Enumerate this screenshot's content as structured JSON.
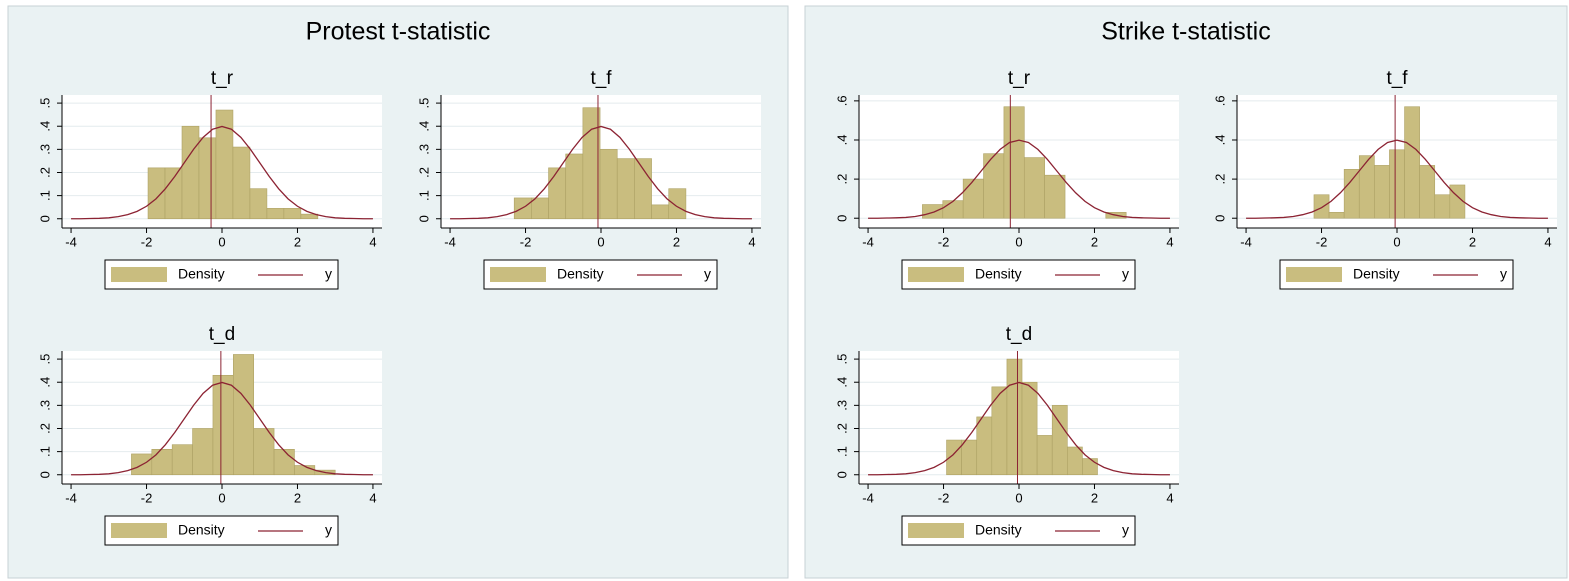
{
  "chart_data": [
    {
      "type": "panel",
      "title": "Protest t-statistic",
      "charts": [
        {
          "type": "histogram",
          "title": "t_r",
          "bins": [
            -1.96,
            -1.51,
            -1.06,
            -0.61,
            -0.16,
            0.29,
            0.74,
            1.19,
            1.64,
            2.09,
            2.54
          ],
          "series": [
            {
              "name": "Density",
              "color": "#c9bd7f",
              "values": [
                0.22,
                0.22,
                0.4,
                0.35,
                0.47,
                0.31,
                0.13,
                0.045,
                0.045,
                0.02
              ]
            }
          ],
          "curve": {
            "name": "y",
            "color": "#8c2333",
            "x": [
              -4,
              -3.75,
              -3.5,
              -3.25,
              -3,
              -2.75,
              -2.5,
              -2.25,
              -2,
              -1.75,
              -1.5,
              -1.25,
              -1,
              -0.75,
              -0.5,
              -0.25,
              0,
              0.25,
              0.5,
              0.75,
              1,
              1.25,
              1.5,
              1.75,
              2,
              2.25,
              2.5,
              2.75,
              3,
              3.25,
              3.5,
              3.75,
              4
            ],
            "values": [
              0,
              0,
              0.001,
              0.002,
              0.004,
              0.009,
              0.018,
              0.032,
              0.054,
              0.086,
              0.13,
              0.183,
              0.242,
              0.301,
              0.352,
              0.387,
              0.399,
              0.387,
              0.352,
              0.301,
              0.242,
              0.183,
              0.13,
              0.086,
              0.054,
              0.032,
              0.018,
              0.009,
              0.004,
              0.002,
              0.001,
              0,
              0
            ]
          },
          "vline": -0.29,
          "xlim": [
            -4.24,
            4.24
          ],
          "xticks": [
            -4,
            -2,
            0,
            2,
            4
          ],
          "ylim": [
            -0.04,
            0.535
          ],
          "yticks": [
            0,
            {
              "value": 0.1,
              "label": ".1"
            },
            {
              "value": 0.2,
              "label": ".2"
            },
            {
              "value": 0.3,
              "label": ".3"
            },
            {
              "value": 0.4,
              "label": ".4"
            },
            {
              "value": 0.5,
              "label": ".5"
            }
          ],
          "grid": true
        },
        {
          "type": "histogram",
          "title": "t_f",
          "bins": [
            -2.3,
            -1.845,
            -1.39,
            -0.935,
            -0.48,
            -0.025,
            0.43,
            0.885,
            1.34,
            1.795,
            2.25
          ],
          "series": [
            {
              "name": "Density",
              "color": "#c9bd7f",
              "values": [
                0.09,
                0.09,
                0.22,
                0.28,
                0.48,
                0.3,
                0.26,
                0.26,
                0.06,
                0.13
              ]
            }
          ],
          "curve": {
            "name": "y",
            "color": "#8c2333",
            "x": [
              -4,
              -3.75,
              -3.5,
              -3.25,
              -3,
              -2.75,
              -2.5,
              -2.25,
              -2,
              -1.75,
              -1.5,
              -1.25,
              -1,
              -0.75,
              -0.5,
              -0.25,
              0,
              0.25,
              0.5,
              0.75,
              1,
              1.25,
              1.5,
              1.75,
              2,
              2.25,
              2.5,
              2.75,
              3,
              3.25,
              3.5,
              3.75,
              4
            ],
            "values": [
              0,
              0,
              0.001,
              0.002,
              0.004,
              0.009,
              0.018,
              0.032,
              0.054,
              0.086,
              0.13,
              0.183,
              0.242,
              0.301,
              0.352,
              0.387,
              0.399,
              0.387,
              0.352,
              0.301,
              0.242,
              0.183,
              0.13,
              0.086,
              0.054,
              0.032,
              0.018,
              0.009,
              0.004,
              0.002,
              0.001,
              0,
              0
            ]
          },
          "vline": -0.08,
          "xlim": [
            -4.24,
            4.24
          ],
          "xticks": [
            -4,
            -2,
            0,
            2,
            4
          ],
          "ylim": [
            -0.04,
            0.535
          ],
          "yticks": [
            0,
            {
              "value": 0.1,
              "label": ".1"
            },
            {
              "value": 0.2,
              "label": ".2"
            },
            {
              "value": 0.3,
              "label": ".3"
            },
            {
              "value": 0.4,
              "label": ".4"
            },
            {
              "value": 0.5,
              "label": ".5"
            }
          ],
          "grid": true
        },
        {
          "type": "histogram",
          "title": "t_d",
          "bins": [
            -2.4,
            -1.86,
            -1.32,
            -0.78,
            -0.24,
            0.3,
            0.84,
            1.38,
            1.92,
            2.46,
            3
          ],
          "series": [
            {
              "name": "Density",
              "color": "#c9bd7f",
              "values": [
                0.09,
                0.11,
                0.13,
                0.2,
                0.43,
                0.52,
                0.2,
                0.11,
                0.04,
                0.02
              ]
            }
          ],
          "curve": {
            "name": "y",
            "color": "#8c2333",
            "x": [
              -4,
              -3.75,
              -3.5,
              -3.25,
              -3,
              -2.75,
              -2.5,
              -2.25,
              -2,
              -1.75,
              -1.5,
              -1.25,
              -1,
              -0.75,
              -0.5,
              -0.25,
              0,
              0.25,
              0.5,
              0.75,
              1,
              1.25,
              1.5,
              1.75,
              2,
              2.25,
              2.5,
              2.75,
              3,
              3.25,
              3.5,
              3.75,
              4
            ],
            "values": [
              0,
              0,
              0.001,
              0.002,
              0.004,
              0.009,
              0.018,
              0.032,
              0.054,
              0.086,
              0.13,
              0.183,
              0.242,
              0.301,
              0.352,
              0.387,
              0.399,
              0.387,
              0.352,
              0.301,
              0.242,
              0.183,
              0.13,
              0.086,
              0.054,
              0.032,
              0.018,
              0.009,
              0.004,
              0.002,
              0.001,
              0,
              0
            ]
          },
          "vline": -0.03,
          "xlim": [
            -4.24,
            4.24
          ],
          "xticks": [
            -4,
            -2,
            0,
            2,
            4
          ],
          "ylim": [
            -0.04,
            0.535
          ],
          "yticks": [
            0,
            {
              "value": 0.1,
              "label": ".1"
            },
            {
              "value": 0.2,
              "label": ".2"
            },
            {
              "value": 0.3,
              "label": ".3"
            },
            {
              "value": 0.4,
              "label": ".4"
            },
            {
              "value": 0.5,
              "label": ".5"
            }
          ],
          "grid": true
        }
      ]
    },
    {
      "type": "panel",
      "title": "Strike t-statistic",
      "charts": [
        {
          "type": "histogram",
          "title": "t_r",
          "bins": [
            -2.56,
            -2.02,
            -1.48,
            -0.94,
            -0.4,
            0.14,
            0.68,
            1.22,
            1.76,
            2.3,
            2.84
          ],
          "series": [
            {
              "name": "Density",
              "color": "#c9bd7f",
              "values": [
                0.07,
                0.09,
                0.2,
                0.33,
                0.57,
                0.31,
                0.22,
                0,
                0,
                0.03
              ]
            }
          ],
          "curve": {
            "name": "y",
            "color": "#8c2333",
            "x": [
              -4,
              -3.75,
              -3.5,
              -3.25,
              -3,
              -2.75,
              -2.5,
              -2.25,
              -2,
              -1.75,
              -1.5,
              -1.25,
              -1,
              -0.75,
              -0.5,
              -0.25,
              0,
              0.25,
              0.5,
              0.75,
              1,
              1.25,
              1.5,
              1.75,
              2,
              2.25,
              2.5,
              2.75,
              3,
              3.25,
              3.5,
              3.75,
              4
            ],
            "values": [
              0,
              0,
              0.001,
              0.002,
              0.004,
              0.009,
              0.018,
              0.032,
              0.054,
              0.086,
              0.13,
              0.183,
              0.242,
              0.301,
              0.352,
              0.387,
              0.399,
              0.387,
              0.352,
              0.301,
              0.242,
              0.183,
              0.13,
              0.086,
              0.054,
              0.032,
              0.018,
              0.009,
              0.004,
              0.002,
              0.001,
              0,
              0
            ]
          },
          "vline": -0.23,
          "xlim": [
            -4.24,
            4.24
          ],
          "xticks": [
            -4,
            -2,
            0,
            2,
            4
          ],
          "ylim": [
            -0.05,
            0.63
          ],
          "yticks": [
            0,
            {
              "value": 0.2,
              "label": ".2"
            },
            {
              "value": 0.4,
              "label": ".4"
            },
            {
              "value": 0.6,
              "label": ".6"
            }
          ],
          "grid": true
        },
        {
          "type": "histogram",
          "title": "t_f",
          "bins": [
            -2.2,
            -1.8,
            -1.4,
            -1,
            -0.6,
            -0.2,
            0.2,
            0.6,
            1,
            1.4,
            1.8
          ],
          "series": [
            {
              "name": "Density",
              "color": "#c9bd7f",
              "values": [
                0.12,
                0.03,
                0.25,
                0.32,
                0.27,
                0.35,
                0.57,
                0.27,
                0.12,
                0.17
              ]
            }
          ],
          "curve": {
            "name": "y",
            "color": "#8c2333",
            "x": [
              -4,
              -3.75,
              -3.5,
              -3.25,
              -3,
              -2.75,
              -2.5,
              -2.25,
              -2,
              -1.75,
              -1.5,
              -1.25,
              -1,
              -0.75,
              -0.5,
              -0.25,
              0,
              0.25,
              0.5,
              0.75,
              1,
              1.25,
              1.5,
              1.75,
              2,
              2.25,
              2.5,
              2.75,
              3,
              3.25,
              3.5,
              3.75,
              4
            ],
            "values": [
              0,
              0,
              0.001,
              0.002,
              0.004,
              0.009,
              0.018,
              0.032,
              0.054,
              0.086,
              0.13,
              0.183,
              0.242,
              0.301,
              0.352,
              0.387,
              0.399,
              0.387,
              0.352,
              0.301,
              0.242,
              0.183,
              0.13,
              0.086,
              0.054,
              0.032,
              0.018,
              0.009,
              0.004,
              0.002,
              0.001,
              0,
              0
            ]
          },
          "vline": -0.05,
          "xlim": [
            -4.24,
            4.24
          ],
          "xticks": [
            -4,
            -2,
            0,
            2,
            4
          ],
          "ylim": [
            -0.05,
            0.63
          ],
          "yticks": [
            0,
            {
              "value": 0.2,
              "label": ".2"
            },
            {
              "value": 0.4,
              "label": ".4"
            },
            {
              "value": 0.6,
              "label": ".6"
            }
          ],
          "grid": true
        },
        {
          "type": "histogram",
          "title": "t_d",
          "bins": [
            -1.92,
            -1.52,
            -1.12,
            -0.72,
            -0.32,
            0.08,
            0.48,
            0.88,
            1.28,
            1.68,
            2.08
          ],
          "series": [
            {
              "name": "Density",
              "color": "#c9bd7f",
              "values": [
                0.15,
                0.15,
                0.25,
                0.38,
                0.5,
                0.4,
                0.17,
                0.3,
                0.12,
                0.07
              ]
            }
          ],
          "curve": {
            "name": "y",
            "color": "#8c2333",
            "x": [
              -4,
              -3.75,
              -3.5,
              -3.25,
              -3,
              -2.75,
              -2.5,
              -2.25,
              -2,
              -1.75,
              -1.5,
              -1.25,
              -1,
              -0.75,
              -0.5,
              -0.25,
              0,
              0.25,
              0.5,
              0.75,
              1,
              1.25,
              1.5,
              1.75,
              2,
              2.25,
              2.5,
              2.75,
              3,
              3.25,
              3.5,
              3.75,
              4
            ],
            "values": [
              0,
              0,
              0.001,
              0.002,
              0.004,
              0.009,
              0.018,
              0.032,
              0.054,
              0.086,
              0.13,
              0.183,
              0.242,
              0.301,
              0.352,
              0.387,
              0.399,
              0.387,
              0.352,
              0.301,
              0.242,
              0.183,
              0.13,
              0.086,
              0.054,
              0.032,
              0.018,
              0.009,
              0.004,
              0.002,
              0.001,
              0,
              0
            ]
          },
          "vline": -0.04,
          "xlim": [
            -4.24,
            4.24
          ],
          "xticks": [
            -4,
            -2,
            0,
            2,
            4
          ],
          "ylim": [
            -0.04,
            0.535
          ],
          "yticks": [
            0,
            {
              "value": 0.1,
              "label": ".1"
            },
            {
              "value": 0.2,
              "label": ".2"
            },
            {
              "value": 0.3,
              "label": ".3"
            },
            {
              "value": 0.4,
              "label": ".4"
            },
            {
              "value": 0.5,
              "label": ".5"
            }
          ],
          "grid": true
        }
      ]
    }
  ]
}
